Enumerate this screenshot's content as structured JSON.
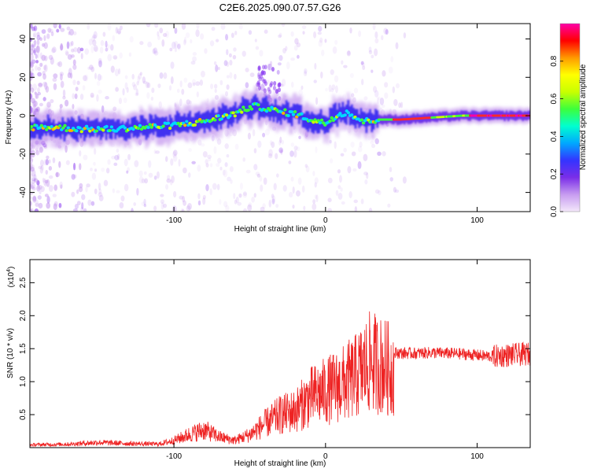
{
  "chart_data": [
    {
      "type": "heatmap",
      "title": "C2E6.2025.090.07.57.G26",
      "xlabel": "Height of straight line (km)",
      "ylabel": "Frequency (Hz)",
      "xlim": [
        -195,
        135
      ],
      "ylim": [
        -50,
        48
      ],
      "xticks": [
        -100,
        0,
        100
      ],
      "xtick_labels": [
        "-100",
        "0",
        "100"
      ],
      "yticks": [
        -40,
        -20,
        0,
        20,
        40
      ],
      "ytick_labels": [
        "-40",
        "-20",
        "0",
        "20",
        "40"
      ],
      "colorbar": {
        "label": "Normalized spectral amplitude",
        "range": [
          0,
          1
        ],
        "ticks": [
          0.0,
          0.2,
          0.4,
          0.6,
          0.8
        ],
        "tick_labels": [
          "0.0",
          "0.2",
          "0.4",
          "0.6",
          "0.8"
        ],
        "colormap": [
          "#f4e8fb",
          "#c79cf0",
          "#7a2ee8",
          "#3434ff",
          "#00a8ff",
          "#00ffd0",
          "#3cff3c",
          "#c8ff00",
          "#ffff00",
          "#ff9a00",
          "#ff0000",
          "#ff00a8"
        ]
      },
      "ridge": {
        "x": [
          -195,
          -180,
          -160,
          -140,
          -120,
          -100,
          -80,
          -60,
          -48,
          -40,
          -30,
          -20,
          -10,
          0,
          5,
          10,
          15,
          20,
          25,
          35,
          50,
          70,
          90,
          110,
          135
        ],
        "y": [
          -6,
          -6,
          -7,
          -7,
          -6,
          -5,
          -3,
          1,
          5,
          4,
          2,
          1,
          -2,
          -4,
          -1,
          1,
          2,
          -1,
          -3,
          -2,
          -2,
          -1,
          0,
          0,
          0
        ]
      }
    },
    {
      "type": "line",
      "title": "",
      "xlabel": "Height of straight line (km)",
      "ylabel": "SNR (10 * v/v)",
      "yscale_label": "(x10",
      "yscale_exp": "4",
      "xlim": [
        -195,
        135
      ],
      "ylim": [
        0,
        2.85
      ],
      "xticks": [
        -100,
        0,
        100
      ],
      "xtick_labels": [
        "-100",
        "0",
        "100"
      ],
      "yticks": [
        0.5,
        1.0,
        1.5,
        2.0,
        2.5
      ],
      "ytick_labels": [
        "0.5",
        "1.0",
        "1.5",
        "2.0",
        "2.5"
      ],
      "series": [
        {
          "name": "SNR",
          "color": "#ee2222",
          "x": [
            -195,
            -170,
            -150,
            -130,
            -110,
            -100,
            -90,
            -80,
            -70,
            -60,
            -50,
            -40,
            -30,
            -20,
            -10,
            0,
            10,
            20,
            30,
            40,
            44,
            46,
            50,
            60,
            70,
            80,
            90,
            100,
            110,
            120,
            135
          ],
          "y": [
            0.05,
            0.06,
            0.09,
            0.07,
            0.06,
            0.12,
            0.22,
            0.3,
            0.18,
            0.12,
            0.22,
            0.4,
            0.55,
            0.62,
            0.85,
            0.95,
            1.05,
            1.2,
            1.45,
            1.35,
            1.3,
            1.44,
            1.43,
            1.43,
            1.44,
            1.43,
            1.42,
            1.4,
            1.38,
            1.4,
            1.42
          ]
        }
      ]
    }
  ]
}
